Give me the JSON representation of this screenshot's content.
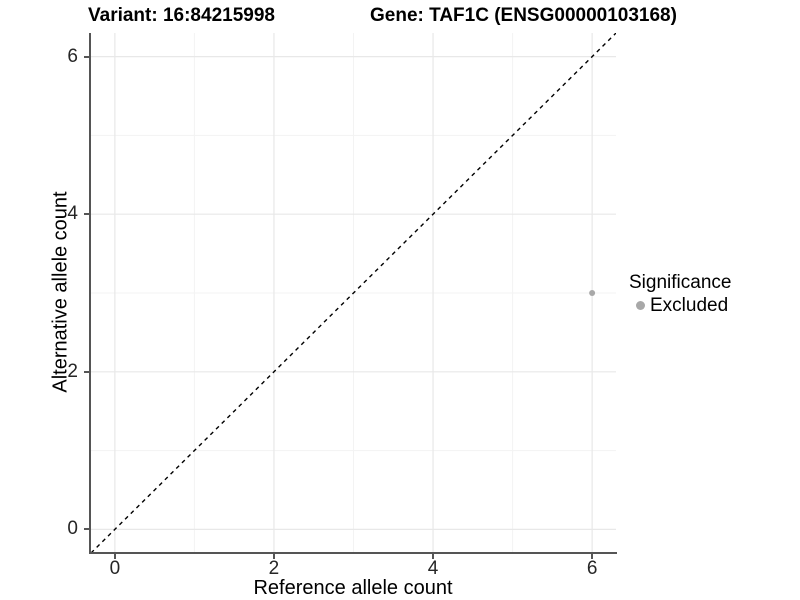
{
  "chart_data": {
    "type": "scatter",
    "title_left": "Variant: 16:84215998",
    "title_right": "Gene: TAF1C (ENSG00000103168)",
    "xlabel": "Reference allele count",
    "ylabel": "Alternative allele count",
    "xlim": [
      -0.3,
      6.3
    ],
    "ylim": [
      -0.3,
      6.3
    ],
    "x_ticks": [
      0,
      2,
      4,
      6
    ],
    "y_ticks": [
      0,
      2,
      4,
      6
    ],
    "x_minor_ticks": [
      1,
      3,
      5
    ],
    "y_minor_ticks": [
      1,
      3,
      5
    ],
    "grid": "on",
    "background": "#ffffff",
    "major_grid_color": "#e8e8e8",
    "minor_grid_color": "#f3f3f3",
    "identity_line": {
      "type": "abline",
      "slope": 1,
      "intercept": 0,
      "style": "dashed",
      "color": "#000000"
    },
    "series": [
      {
        "name": "Excluded",
        "color": "#a8a8a8",
        "points": [
          {
            "x": 6,
            "y": 3
          }
        ]
      }
    ],
    "legend": {
      "position": "right",
      "title": "Significance",
      "items": [
        {
          "label": "Excluded",
          "color": "#a8a8a8"
        }
      ]
    }
  }
}
